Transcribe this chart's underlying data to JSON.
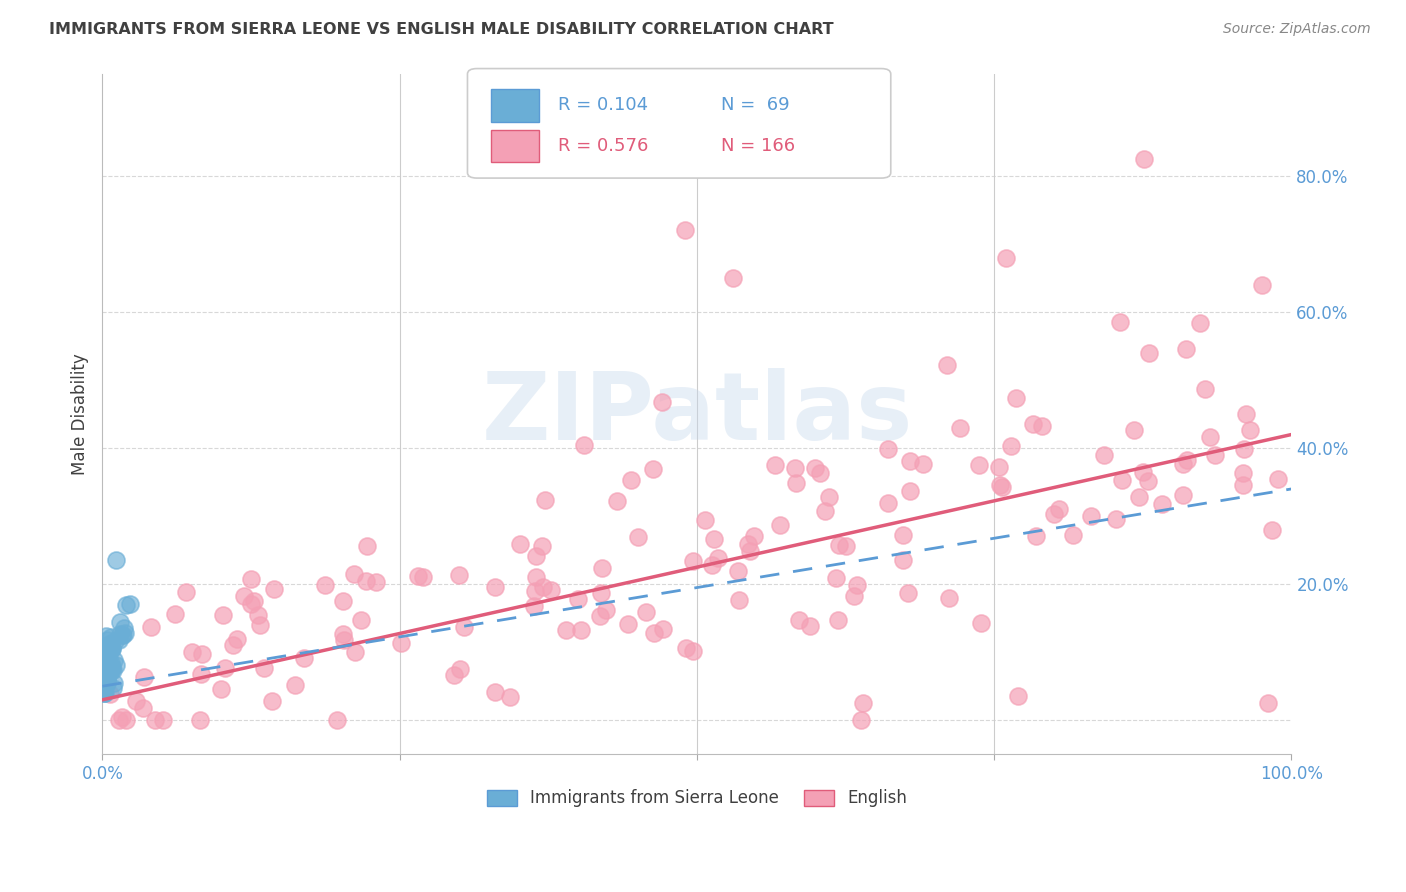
{
  "title": "IMMIGRANTS FROM SIERRA LEONE VS ENGLISH MALE DISABILITY CORRELATION CHART",
  "source": "Source: ZipAtlas.com",
  "ylabel": "Male Disability",
  "xlim": [
    0.0,
    1.0
  ],
  "ylim": [
    -0.05,
    0.95
  ],
  "ytick_positions": [
    0.0,
    0.2,
    0.4,
    0.6,
    0.8
  ],
  "yticklabels_right": [
    "",
    "20.0%",
    "40.0%",
    "60.0%",
    "80.0%"
  ],
  "watermark_text": "ZIPatlas",
  "legend_r1": "R = 0.104",
  "legend_n1": "N =  69",
  "legend_r2": "R = 0.576",
  "legend_n2": "N = 166",
  "color_blue": "#6aaed6",
  "color_pink": "#f4a0b5",
  "color_blue_line": "#5b9bd5",
  "color_pink_line": "#e05c7a",
  "color_title": "#404040",
  "color_source": "#888888",
  "color_axis_labels": "#5b9bd5",
  "background_color": "#ffffff",
  "grid_color": "#cccccc",
  "grid_color_h": "#d8d8d8"
}
